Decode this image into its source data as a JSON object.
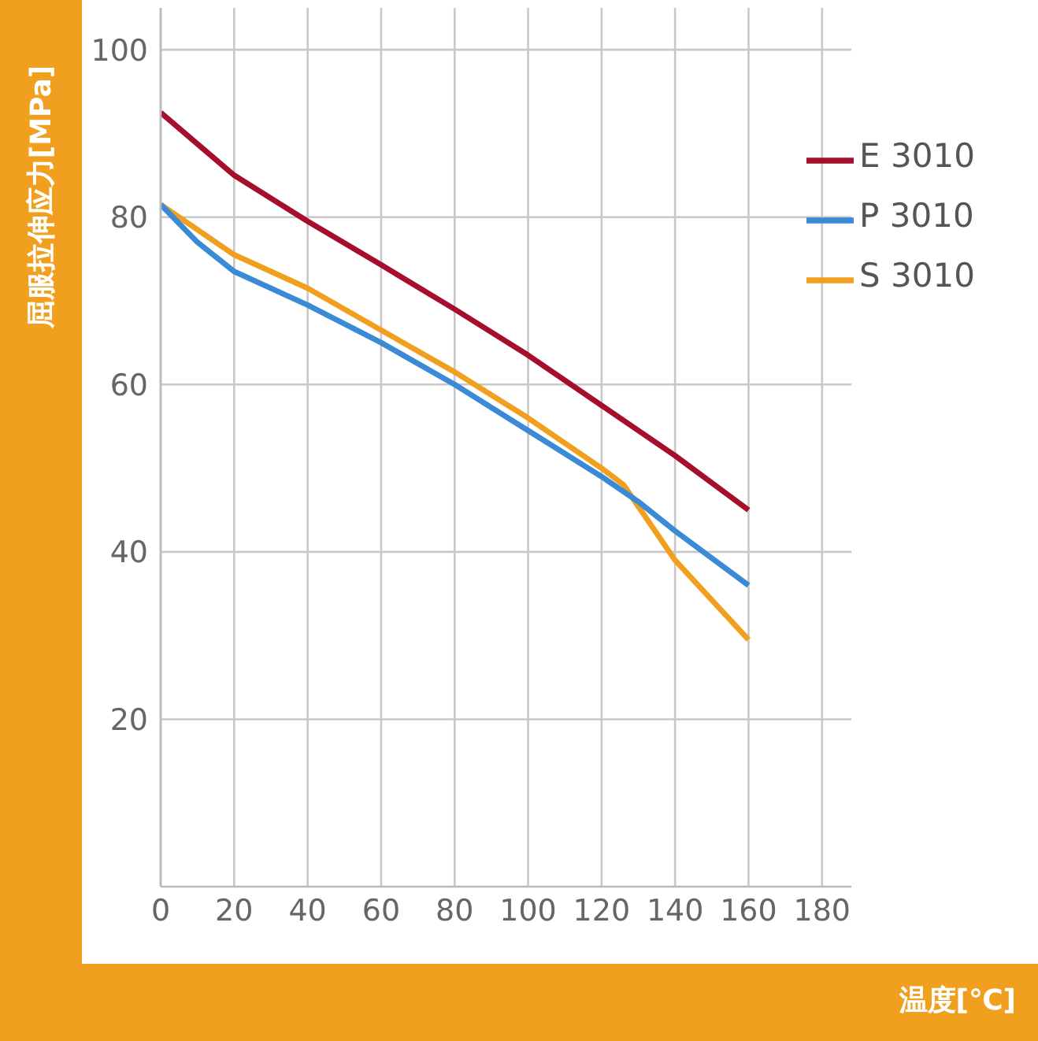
{
  "chart_data": {
    "type": "line",
    "xlabel": "温度[℃]",
    "ylabel": "屈服拉伸应力[MPa]",
    "xlim": [
      0,
      188
    ],
    "ylim": [
      0,
      105
    ],
    "xticks": [
      0,
      20,
      40,
      60,
      80,
      100,
      120,
      140,
      160,
      180
    ],
    "yticks": [
      20,
      40,
      60,
      80,
      100
    ],
    "grid": true,
    "legend": "top right",
    "marker": "none",
    "line_style": "solid",
    "series": [
      {
        "name": "E 3010",
        "color": "#a50f2d",
        "x": [
          0,
          20,
          40,
          60,
          80,
          100,
          120,
          140,
          160
        ],
        "values": [
          92.5,
          85,
          79.5,
          74.3,
          69,
          63.5,
          57.5,
          51.5,
          45
        ]
      },
      {
        "name": "S 3010",
        "color": "#f0a01e",
        "x": [
          0,
          20,
          40,
          60,
          80,
          100,
          120,
          126,
          140,
          160
        ],
        "values": [
          81.5,
          75.5,
          71.5,
          66.5,
          61.5,
          56,
          50,
          48,
          39,
          29.5
        ]
      },
      {
        "name": "P 3010",
        "color": "#3a8ad6",
        "x": [
          0,
          10,
          20,
          40,
          60,
          80,
          100,
          120,
          130,
          140,
          160
        ],
        "values": [
          81.5,
          77,
          73.5,
          69.5,
          65,
          60,
          54.5,
          49,
          46,
          42.5,
          36
        ]
      }
    ]
  }
}
